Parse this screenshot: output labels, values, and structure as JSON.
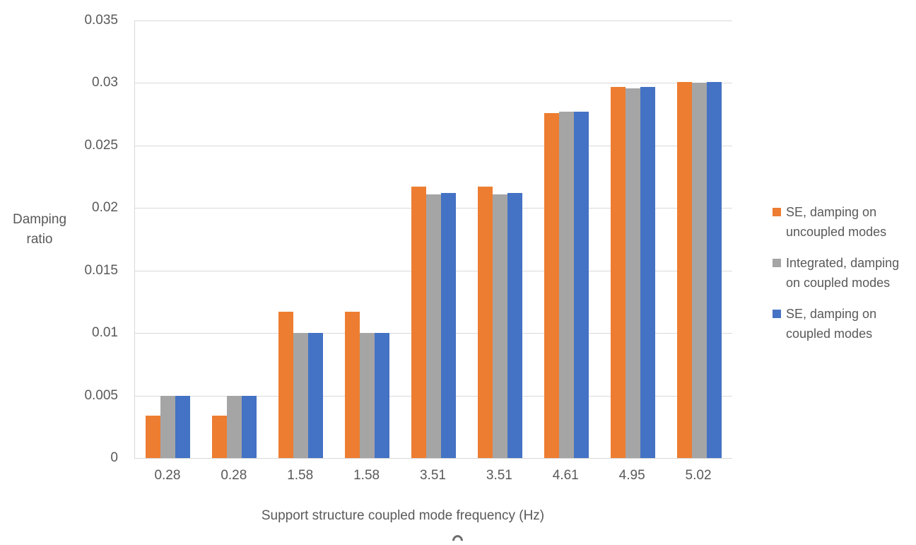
{
  "chart_data": {
    "type": "bar",
    "title": "",
    "categories": [
      "0.28",
      "0.28",
      "1.58",
      "1.58",
      "3.51",
      "3.51",
      "4.61",
      "4.95",
      "5.02"
    ],
    "series": [
      {
        "name": "SE, damping on uncoupled modes",
        "color": "#ED7D31",
        "values": [
          0.0034,
          0.0034,
          0.0117,
          0.0117,
          0.0217,
          0.0217,
          0.0276,
          0.0297,
          0.0301
        ]
      },
      {
        "name": "Integrated, damping on coupled modes",
        "color": "#A5A5A5",
        "values": [
          0.005,
          0.005,
          0.01,
          0.01,
          0.0211,
          0.0211,
          0.0277,
          0.0296,
          0.03
        ]
      },
      {
        "name": "SE, damping on coupled modes",
        "color": "#4472C4",
        "values": [
          0.005,
          0.005,
          0.01,
          0.01,
          0.0212,
          0.0212,
          0.0277,
          0.0297,
          0.0301
        ]
      }
    ],
    "xlabel": "Support structure coupled mode frequency (Hz)",
    "ylabel": "Damping ratio",
    "ylim": [
      0,
      0.035
    ],
    "yticks": [
      0,
      0.005,
      0.01,
      0.015,
      0.02,
      0.025,
      0.03,
      0.035
    ],
    "ytick_labels": [
      "0",
      "0.005",
      "0.01",
      "0.015",
      "0.02",
      "0.025",
      "0.03",
      "0.035"
    ],
    "grid": true,
    "legend_position": "right",
    "gridline_color": "#D9D9D9",
    "text_color": "#595959"
  }
}
